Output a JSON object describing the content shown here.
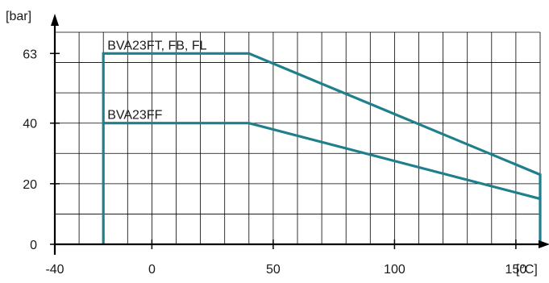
{
  "chart_data": {
    "type": "line",
    "title": "",
    "xlabel": "[°C]",
    "ylabel": "[bar]",
    "xlim": [
      -40,
      160
    ],
    "ylim": [
      0,
      70
    ],
    "x_ticks": [
      -40,
      0,
      50,
      100,
      150
    ],
    "y_ticks": [
      0,
      20,
      40,
      63
    ],
    "grid": true,
    "series_color": "#1f7f8c",
    "series": [
      {
        "name": "BVA23FT, FB, FL",
        "x": [
          -20,
          -20,
          40,
          160,
          160
        ],
        "y": [
          0,
          63,
          63,
          23,
          0
        ]
      },
      {
        "name": "BVA23FF",
        "x": [
          -20,
          40,
          160
        ],
        "y": [
          40,
          40,
          15
        ]
      }
    ]
  }
}
